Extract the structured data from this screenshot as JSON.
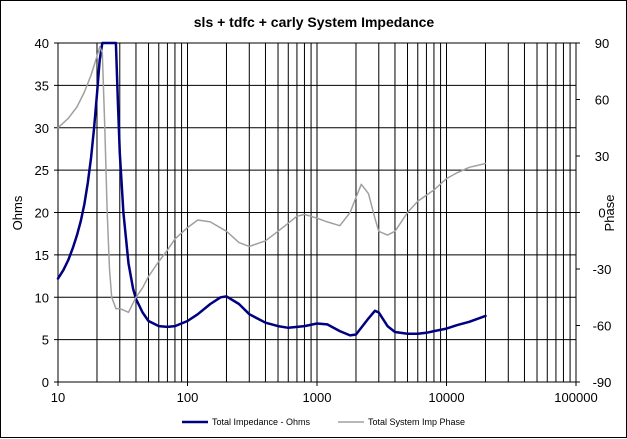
{
  "chart_data": {
    "type": "line",
    "title": "sls + tdfc + carly  System Impedance",
    "xlabel": "",
    "ylabel": "Ohms",
    "y2label": "Phase",
    "xscale": "log",
    "xlim": [
      10,
      100000
    ],
    "ylim": [
      0,
      40
    ],
    "y2lim": [
      -90,
      90
    ],
    "x_ticks": [
      "10",
      "100",
      "1000",
      "10000",
      "100000"
    ],
    "y_ticks": [
      "0",
      "5",
      "10",
      "15",
      "20",
      "25",
      "30",
      "35",
      "40"
    ],
    "y2_ticks": [
      "-90",
      "-60",
      "-30",
      "0",
      "30",
      "60",
      "90"
    ],
    "grid": true,
    "legend_position": "bottom",
    "colors": {
      "impedance": "#000080",
      "phase": "#a0a0a0",
      "grid": "#000000"
    },
    "series": [
      {
        "name": "Total Impedance - Ohms",
        "axis": "left",
        "x": [
          10,
          11,
          12,
          13,
          14,
          15,
          16,
          17,
          18,
          19,
          20,
          21,
          22,
          28,
          29,
          30,
          32,
          35,
          38,
          40,
          45,
          50,
          60,
          70,
          80,
          100,
          120,
          150,
          180,
          200,
          250,
          300,
          400,
          500,
          600,
          800,
          1000,
          1200,
          1500,
          1800,
          2000,
          2500,
          2800,
          3000,
          3500,
          4000,
          5000,
          6000,
          7000,
          8000,
          10000,
          12000,
          15000,
          20000
        ],
        "values": [
          12.2,
          13.2,
          14.4,
          15.8,
          17.3,
          19.0,
          21.0,
          23.5,
          26.5,
          30.0,
          34.0,
          38.0,
          40.0,
          40.0,
          33.0,
          27.0,
          20.0,
          14.0,
          11.0,
          9.8,
          8.2,
          7.2,
          6.6,
          6.5,
          6.6,
          7.2,
          8.0,
          9.2,
          10.0,
          10.1,
          9.2,
          8.0,
          7.0,
          6.6,
          6.4,
          6.6,
          6.9,
          6.8,
          6.0,
          5.5,
          5.6,
          7.5,
          8.4,
          8.2,
          6.6,
          5.9,
          5.7,
          5.7,
          5.8,
          6.0,
          6.3,
          6.7,
          7.1,
          7.8
        ]
      },
      {
        "name": "Total System Imp Phase",
        "axis": "right",
        "x": [
          10,
          12,
          14,
          16,
          18,
          20,
          21,
          22,
          23,
          24,
          25,
          26,
          28,
          30,
          35,
          40,
          45,
          50,
          60,
          70,
          80,
          100,
          120,
          150,
          200,
          250,
          300,
          400,
          500,
          700,
          800,
          1000,
          1200,
          1500,
          1800,
          2000,
          2200,
          2500,
          2800,
          3000,
          3500,
          4000,
          5000,
          6000,
          8000,
          10000,
          12000,
          15000,
          20000
        ],
        "values": [
          45,
          50,
          56,
          64,
          73,
          83,
          88,
          85,
          45,
          0,
          -30,
          -45,
          -51,
          -51,
          -53,
          -45,
          -40,
          -34,
          -26,
          -20,
          -14,
          -8,
          -4,
          -5,
          -10,
          -16,
          -18,
          -15,
          -10,
          -2,
          -1,
          -3,
          -5,
          -7,
          0,
          8,
          15,
          10,
          -3,
          -10,
          -12,
          -10,
          0,
          6,
          12,
          18,
          21,
          24,
          26
        ]
      }
    ]
  }
}
